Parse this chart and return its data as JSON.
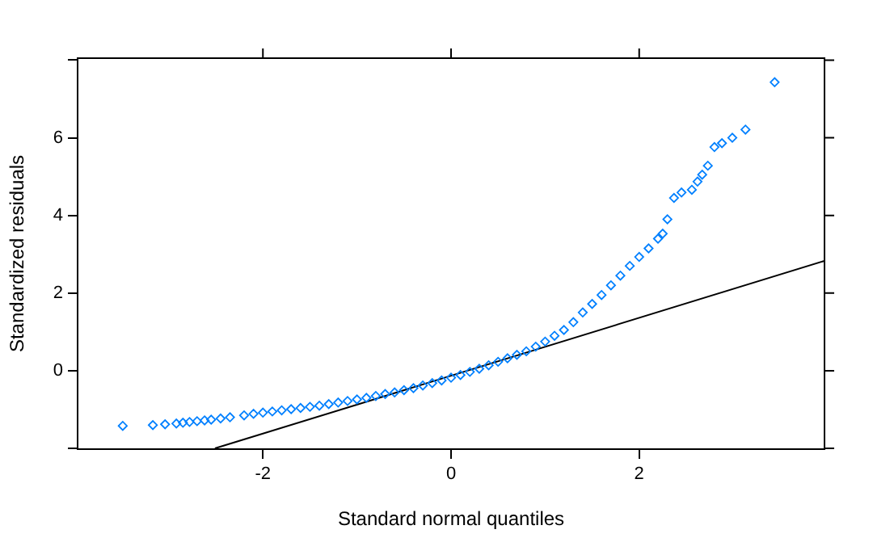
{
  "chart_data": {
    "type": "scatter",
    "xlabel": "Standard normal quantiles",
    "ylabel": "Standardized residuals",
    "xlim": [
      -3.97,
      3.97
    ],
    "ylim": [
      -2.02,
      8.05
    ],
    "xticks": [
      -2,
      0,
      2
    ],
    "yticks": [
      {
        "value": -2,
        "label": null
      },
      0,
      2,
      4,
      6,
      {
        "value": 8,
        "label": null
      }
    ],
    "grid": false,
    "legend": false,
    "marker": "diamond",
    "series": [
      {
        "color": "#0080ff",
        "x": [
          -3.49,
          -3.17,
          -3.04,
          -2.92,
          -2.85,
          -2.78,
          -2.7,
          -2.62,
          -2.55,
          -2.45,
          -2.35,
          -2.2,
          -2.1,
          -2.0,
          -1.9,
          -1.8,
          -1.7,
          -1.6,
          -1.5,
          -1.4,
          -1.3,
          -1.2,
          -1.1,
          -1.0,
          -0.9,
          -0.8,
          -0.7,
          -0.6,
          -0.5,
          -0.4,
          -0.3,
          -0.2,
          -0.1,
          0,
          0.1,
          0.2,
          0.3,
          0.4,
          0.5,
          0.6,
          0.7,
          0.8,
          0.9,
          1.0,
          1.1,
          1.2,
          1.3,
          1.4,
          1.5,
          1.6,
          1.7,
          1.8,
          1.9,
          2.0,
          2.1,
          2.2,
          2.25,
          2.3,
          2.37,
          2.45,
          2.56,
          2.62,
          2.67,
          2.73,
          2.8,
          2.88,
          2.99,
          3.13,
          3.44
        ],
        "values": [
          -1.42,
          -1.4,
          -1.38,
          -1.36,
          -1.34,
          -1.32,
          -1.3,
          -1.28,
          -1.26,
          -1.23,
          -1.2,
          -1.15,
          -1.11,
          -1.08,
          -1.05,
          -1.02,
          -0.99,
          -0.96,
          -0.93,
          -0.9,
          -0.86,
          -0.82,
          -0.78,
          -0.74,
          -0.7,
          -0.65,
          -0.6,
          -0.56,
          -0.5,
          -0.45,
          -0.38,
          -0.32,
          -0.25,
          -0.18,
          -0.11,
          -0.03,
          0.05,
          0.14,
          0.23,
          0.32,
          0.41,
          0.5,
          0.62,
          0.75,
          0.9,
          1.05,
          1.25,
          1.5,
          1.72,
          1.95,
          2.2,
          2.45,
          2.7,
          2.93,
          3.15,
          3.4,
          3.53,
          3.9,
          4.45,
          4.59,
          4.66,
          4.87,
          5.05,
          5.28,
          5.76,
          5.86,
          6.0,
          6.21,
          7.43
        ]
      },
      {
        "type": "line",
        "color": "#000000",
        "marker": "none",
        "line_style": "solid",
        "x": [
          -2.51,
          3.97
        ],
        "values": [
          -2.0,
          2.83
        ]
      }
    ]
  }
}
